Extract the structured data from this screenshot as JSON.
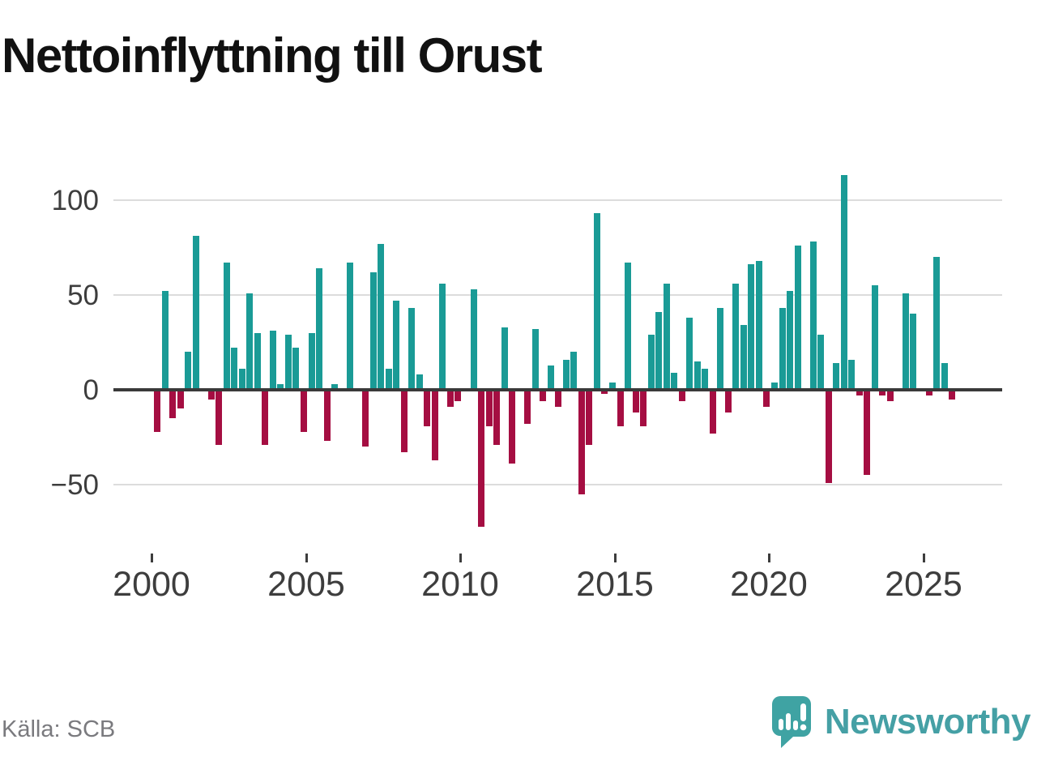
{
  "title": "Nettoinflyttning till Orust",
  "source": "Källa: SCB",
  "logo": {
    "text": "Newsworthy",
    "icon": "newsworthy-speech-bubble-chart-icon"
  },
  "colors": {
    "positive_bar": "#1a9b96",
    "negative_bar": "#a50e42",
    "axis_line": "#3a3a3a",
    "gridline": "#dcdcdc",
    "tick_text": "#3d3d3d",
    "title_text": "#111111",
    "source_text": "#7a7a7e",
    "logo_teal": "#45a0a5",
    "background": "#ffffff"
  },
  "chart_data": {
    "type": "bar",
    "title": "Nettoinflyttning till Orust",
    "x_unit": "quarter",
    "start": "2000Q1",
    "end": "2025Q4",
    "grid": "horizontal",
    "legend": "none",
    "ylim": [
      -75,
      115
    ],
    "yticks": [
      100,
      50,
      0,
      -50
    ],
    "ytick_labels": [
      "100",
      "50",
      "0",
      "−50"
    ],
    "xticks": [
      2000,
      2005,
      2010,
      2015,
      2020,
      2025
    ],
    "xtick_labels": [
      "2000",
      "2005",
      "2010",
      "2015",
      "2020",
      "2025"
    ],
    "series_note": "positive quarters teal, negative quarters crimson; zero quarters have no bar",
    "values_by_year": [
      {
        "year": 2000,
        "values": [
          -22,
          52,
          -15,
          -10
        ]
      },
      {
        "year": 2001,
        "values": [
          20,
          81,
          0,
          -5
        ]
      },
      {
        "year": 2002,
        "values": [
          -29,
          67,
          22,
          11
        ]
      },
      {
        "year": 2003,
        "values": [
          51,
          30,
          -29,
          31
        ]
      },
      {
        "year": 2004,
        "values": [
          3,
          29,
          22,
          -22
        ]
      },
      {
        "year": 2005,
        "values": [
          30,
          64,
          -27,
          3
        ]
      },
      {
        "year": 2006,
        "values": [
          0,
          67,
          0,
          -30
        ]
      },
      {
        "year": 2007,
        "values": [
          62,
          77,
          11,
          47
        ]
      },
      {
        "year": 2008,
        "values": [
          -33,
          43,
          8,
          -19
        ]
      },
      {
        "year": 2009,
        "values": [
          -37,
          56,
          -9,
          -6
        ]
      },
      {
        "year": 2010,
        "values": [
          0,
          53,
          -72,
          -19
        ]
      },
      {
        "year": 2011,
        "values": [
          -29,
          33,
          -39,
          0
        ]
      },
      {
        "year": 2012,
        "values": [
          -18,
          32,
          -6,
          13
        ]
      },
      {
        "year": 2013,
        "values": [
          -9,
          16,
          20,
          -55
        ]
      },
      {
        "year": 2014,
        "values": [
          -29,
          93,
          -2,
          4
        ]
      },
      {
        "year": 2015,
        "values": [
          -19,
          67,
          -12,
          -19
        ]
      },
      {
        "year": 2016,
        "values": [
          29,
          41,
          56,
          9
        ]
      },
      {
        "year": 2017,
        "values": [
          -6,
          38,
          15,
          11
        ]
      },
      {
        "year": 2018,
        "values": [
          -23,
          43,
          -12,
          56
        ]
      },
      {
        "year": 2019,
        "values": [
          34,
          66,
          68,
          -9
        ]
      },
      {
        "year": 2020,
        "values": [
          4,
          43,
          52,
          76
        ]
      },
      {
        "year": 2021,
        "values": [
          0,
          78,
          29,
          -49
        ]
      },
      {
        "year": 2022,
        "values": [
          14,
          113,
          16,
          -3
        ]
      },
      {
        "year": 2023,
        "values": [
          -45,
          55,
          -3,
          -6
        ]
      },
      {
        "year": 2024,
        "values": [
          0,
          51,
          40,
          0
        ]
      },
      {
        "year": 2025,
        "values": [
          -3,
          70,
          14,
          -5
        ]
      }
    ]
  }
}
